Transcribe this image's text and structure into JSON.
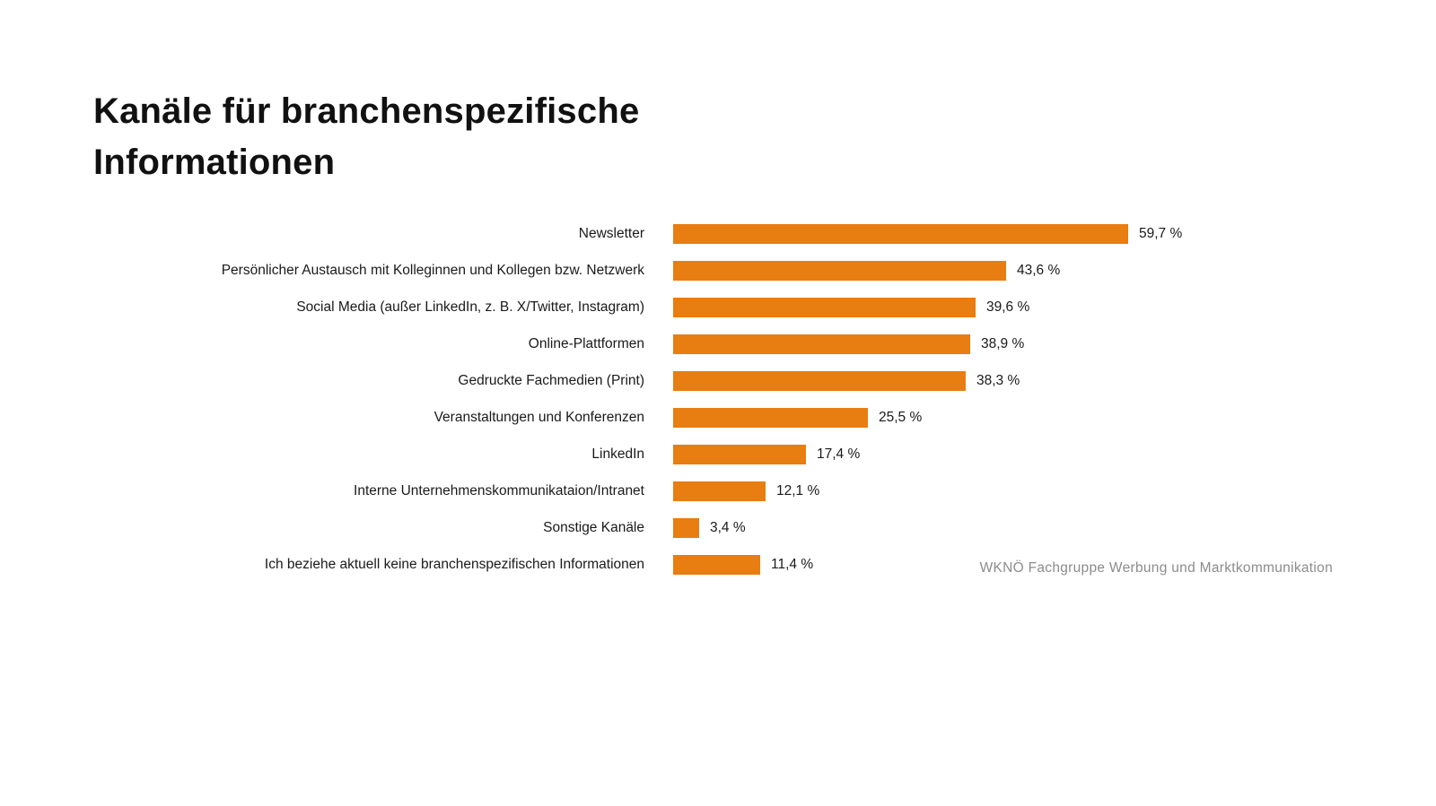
{
  "title": {
    "full": "Kanäle für branchenspezifische Informationen",
    "line1": "Kanäle für branchenspezifische",
    "line2": "Informationen"
  },
  "footer": {
    "source": "WKNÖ Fachgruppe Werbung und Marktkommunikation"
  },
  "colors": {
    "bar": "#e87d11",
    "title_text": "#111111",
    "label_text": "#1a1a1a",
    "footer_text": "#8c8c8c",
    "background": "#ffffff"
  },
  "chart_data": {
    "type": "bar",
    "orientation": "horizontal",
    "title": "Kanäle für branchenspezifische Informationen",
    "categories": [
      "Newsletter",
      "Persönlicher Austausch mit Kolleginnen und Kollegen bzw. Netzwerk",
      "Social Media (außer LinkedIn, z. B. X/Twitter, Instagram)",
      "Online-Plattformen",
      "Gedruckte Fachmedien (Print)",
      "Veranstaltungen und Konferenzen",
      "LinkedIn",
      "Interne Unternehmenskommunikataion/Intranet",
      "Sonstige Kanäle",
      "Ich beziehe aktuell keine branchenspezifischen Informationen"
    ],
    "values": [
      59.7,
      43.6,
      39.6,
      38.9,
      38.3,
      25.5,
      17.4,
      12.1,
      3.4,
      11.4
    ],
    "value_labels": [
      "59,7 %",
      "43,6 %",
      "39,6 %",
      "38,9 %",
      "38,3 %",
      "25,5 %",
      "17,4 %",
      "12,1 %",
      "3,4 %",
      "11,4 %"
    ],
    "unit": "%",
    "xlabel": "",
    "ylabel": "",
    "xlim": [
      0,
      60
    ],
    "grid": false,
    "legend": false,
    "value_labels_position": "right-of-bar",
    "source": "WKNÖ Fachgruppe Werbung und Marktkommunikation"
  }
}
